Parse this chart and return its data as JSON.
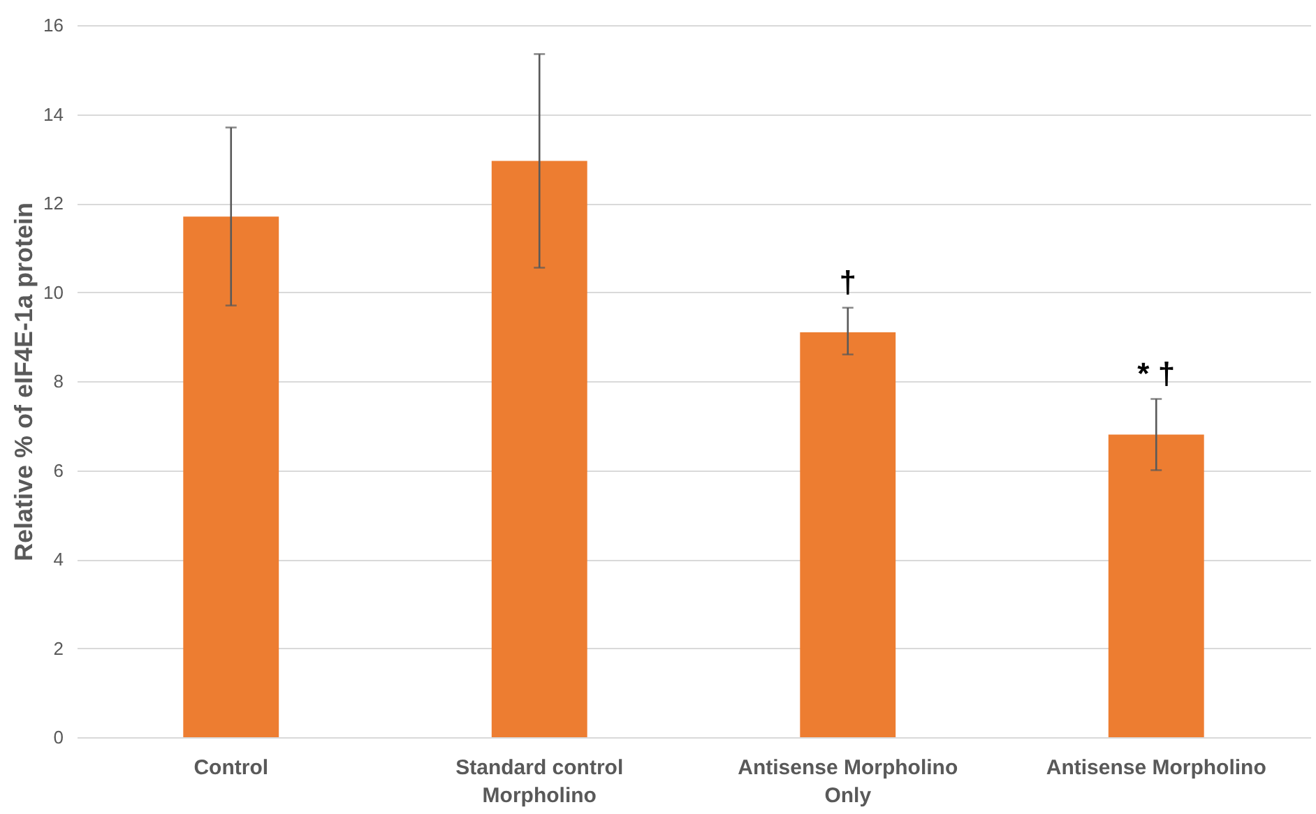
{
  "chart_data": {
    "type": "bar",
    "ylabel": "Relative %  of eIF4E-1a protein",
    "categories": [
      "Control",
      "Standard control Morpholino",
      "Antisense Morpholino Only",
      "Antisense Morpholino"
    ],
    "values": [
      11.7,
      12.95,
      9.1,
      6.8
    ],
    "color": "#ed7d31",
    "errors": [
      [
        9.7,
        13.7
      ],
      [
        10.55,
        15.35
      ],
      [
        8.6,
        9.65
      ],
      [
        6.0,
        7.6
      ]
    ],
    "ylim": [
      0,
      16
    ],
    "yticks": [
      0,
      2,
      4,
      6,
      8,
      10,
      12,
      14,
      16
    ],
    "grid": "y",
    "annotations": [
      {
        "text": "†",
        "x": "Antisense Morpholino Only",
        "y": 9.65
      },
      {
        "text": "* †",
        "x": "Antisense Morpholino",
        "y": 7.6
      }
    ]
  }
}
